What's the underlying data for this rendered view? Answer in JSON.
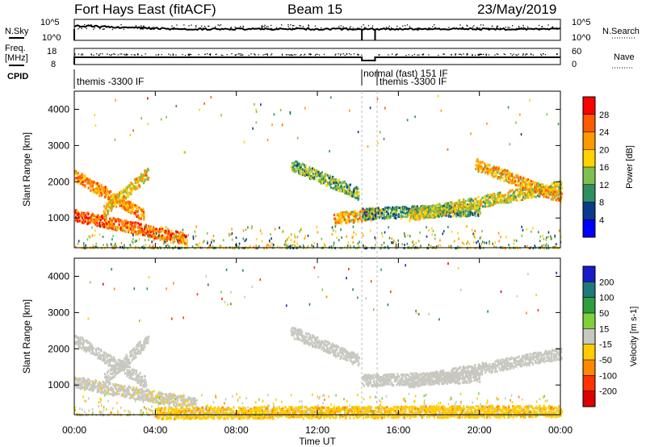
{
  "header": {
    "title": "Fort Hays East (fitACF)",
    "beam": "Beam 15",
    "date": "23/May/2019"
  },
  "panels": {
    "noise": {
      "left_label": "N.Sky",
      "right_label": "N.Search",
      "left_ticks": [
        "10^5",
        "10^0"
      ],
      "right_ticks": [
        "10^5",
        "10^0"
      ]
    },
    "freq": {
      "left_label_1": "Freq.",
      "left_label_2": "[MHz]",
      "right_label": "Nave",
      "left_ticks": [
        "18",
        "8"
      ],
      "right_ticks": [
        "60",
        "0"
      ]
    },
    "cpid": {
      "label": "CPID",
      "segments": [
        "themis -3300 IF",
        "normal (fast) 151 IF",
        "themis -3300 IF"
      ]
    }
  },
  "axes": {
    "x_label": "Time UT",
    "x_ticks": [
      "00:00",
      "04:00",
      "08:00",
      "12:00",
      "16:00",
      "20:00",
      "00:00"
    ],
    "y_label": "Slant Range [km]",
    "y_ticks": [
      "4000",
      "3000",
      "2000",
      "1000"
    ]
  },
  "colorbars": {
    "power": {
      "title": "Power [dB]",
      "ticks": [
        "28",
        "24",
        "20",
        "16",
        "12",
        "8",
        "4"
      ],
      "colors": [
        "#ff0000",
        "#ff5a00",
        "#ff9900",
        "#ffd200",
        "#7fbf4f",
        "#2f8f5f",
        "#0b3a8a",
        "#0000ff"
      ]
    },
    "velocity": {
      "title": "Velocity [m s-1]",
      "ticks": [
        "200",
        "100",
        "50",
        "15",
        "-15",
        "-50",
        "-100",
        "-200"
      ],
      "colors": [
        "#1a1acc",
        "#1e7a7a",
        "#2e9e3e",
        "#7fd03a",
        "#c8c8c0",
        "#ffcc00",
        "#ff8800",
        "#ff3300",
        "#dd0000"
      ]
    }
  },
  "chart_data": [
    {
      "type": "heatmap",
      "title": "Power",
      "xlabel": "Time UT",
      "ylabel": "Slant Range [km]",
      "xlim": [
        0,
        24
      ],
      "ylim": [
        180,
        4500
      ],
      "colorbar": "Power [dB]",
      "colorbar_range": [
        0,
        30
      ],
      "features": [
        {
          "t_start": 0.0,
          "t_end": 3.4,
          "range_start": 2200,
          "range_end": 1100,
          "power_db": 22
        },
        {
          "t_start": 1.4,
          "t_end": 3.6,
          "range_start": 1200,
          "range_end": 2250,
          "power_db": 18
        },
        {
          "t_start": 0.0,
          "t_end": 5.5,
          "range_start": 1100,
          "range_end": 450,
          "power_db": 24
        },
        {
          "t_start": 10.7,
          "t_end": 14.0,
          "range_start": 2500,
          "range_end": 1700,
          "power_db": 12
        },
        {
          "t_start": 12.8,
          "t_end": 15.0,
          "range_start": 1000,
          "range_end": 1150,
          "power_db": 20
        },
        {
          "t_start": 14.2,
          "t_end": 20.0,
          "range_start": 1150,
          "range_end": 1250,
          "power_db": 10
        },
        {
          "t_start": 16.5,
          "t_end": 24.0,
          "range_start": 1100,
          "range_end": 1900,
          "power_db": 16
        },
        {
          "t_start": 19.8,
          "t_end": 24.0,
          "range_start": 2500,
          "range_end": 1600,
          "power_db": 20
        }
      ]
    },
    {
      "type": "heatmap",
      "title": "Velocity",
      "xlabel": "Time UT",
      "ylabel": "Slant Range [km]",
      "xlim": [
        0,
        24
      ],
      "ylim": [
        180,
        4500
      ],
      "colorbar": "Velocity [m s-1]",
      "colorbar_range": [
        -200,
        200
      ],
      "features": [
        {
          "t_start": 0.0,
          "t_end": 3.5,
          "range_start": 2300,
          "range_end": 1100,
          "velocity": 0
        },
        {
          "t_start": 1.5,
          "t_end": 3.6,
          "range_start": 1200,
          "range_end": 2250,
          "velocity": 0
        },
        {
          "t_start": 0.0,
          "t_end": 6.0,
          "range_start": 1100,
          "range_end": 500,
          "velocity": -10
        },
        {
          "t_start": 10.7,
          "t_end": 14.0,
          "range_start": 2500,
          "range_end": 1700,
          "velocity": 0
        },
        {
          "t_start": 14.2,
          "t_end": 20.0,
          "range_start": 1150,
          "range_end": 1250,
          "velocity": 0
        },
        {
          "t_start": 16.5,
          "t_end": 24.0,
          "range_start": 1100,
          "range_end": 1900,
          "velocity": 0
        },
        {
          "t_start": 4.0,
          "t_end": 24.0,
          "range_start": 250,
          "range_end": 300,
          "velocity": -60
        }
      ]
    }
  ]
}
